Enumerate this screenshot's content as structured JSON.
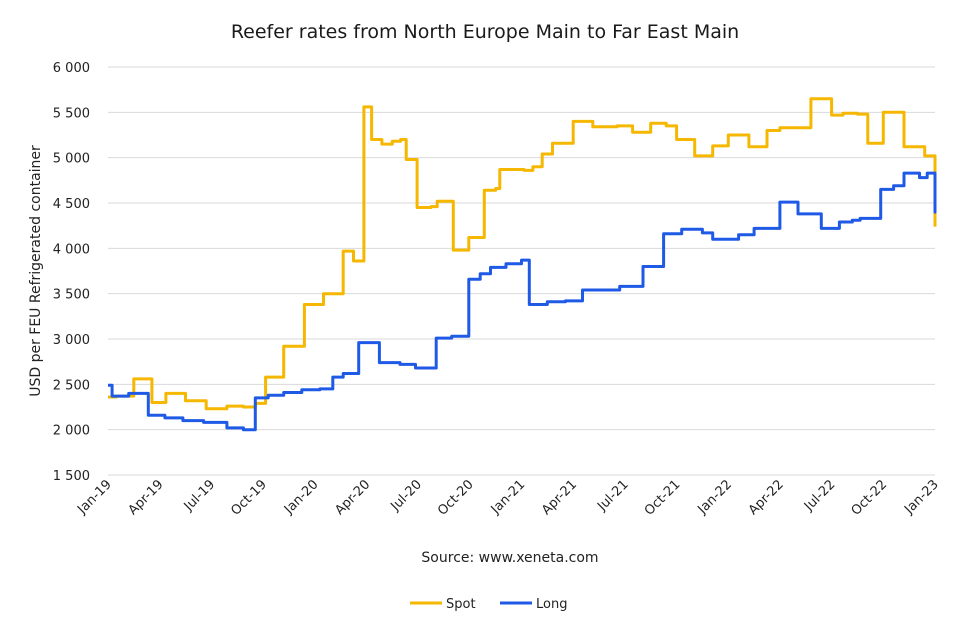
{
  "chart_data": {
    "type": "line",
    "title": "Reefer rates from North Europe Main to Far East Main",
    "ylabel": "USD per FEU Refrigerated container",
    "source": "Source: www.xeneta.com",
    "ylim": [
      1500,
      6000
    ],
    "yticks": [
      1500,
      2000,
      2500,
      3000,
      3500,
      4000,
      4500,
      5000,
      5500,
      6000
    ],
    "ytick_labels": [
      "1 500",
      "2 000",
      "2 500",
      "3 000",
      "3 500",
      "4 000",
      "4 500",
      "5 000",
      "5 500",
      "6 000"
    ],
    "xticks": [
      "Jan-19",
      "Apr-19",
      "Jul-19",
      "Oct-19",
      "Jan-20",
      "Apr-20",
      "Jul-20",
      "Oct-20",
      "Jan-21",
      "Apr-21",
      "Jul-21",
      "Oct-21",
      "Jan-22",
      "Apr-22",
      "Jul-22",
      "Oct-22",
      "Jan-23"
    ],
    "x_unit": "quarter-index (0 = Jan-19, 16 = Jan-23)",
    "grid": true,
    "legend_position": "bottom",
    "colors": {
      "Spot": "#f5b700",
      "Long": "#1f5ae6"
    },
    "series": [
      {
        "name": "Spot",
        "step": true,
        "points": [
          [
            0,
            2360
          ],
          [
            0.16,
            2370
          ],
          [
            0.5,
            2560
          ],
          [
            0.85,
            2300
          ],
          [
            1.12,
            2400
          ],
          [
            1.5,
            2320
          ],
          [
            1.9,
            2230
          ],
          [
            2.3,
            2260
          ],
          [
            2.62,
            2250
          ],
          [
            2.85,
            2290
          ],
          [
            3.05,
            2580
          ],
          [
            3.4,
            2920
          ],
          [
            3.8,
            3380
          ],
          [
            4.17,
            3500
          ],
          [
            4.55,
            3970
          ],
          [
            4.75,
            3860
          ],
          [
            4.95,
            5560
          ],
          [
            5.1,
            5200
          ],
          [
            5.3,
            5150
          ],
          [
            5.5,
            5180
          ],
          [
            5.66,
            5200
          ],
          [
            5.77,
            4980
          ],
          [
            5.98,
            4450
          ],
          [
            6.25,
            4460
          ],
          [
            6.37,
            4520
          ],
          [
            6.68,
            3980
          ],
          [
            6.98,
            4120
          ],
          [
            7.28,
            4640
          ],
          [
            7.5,
            4660
          ],
          [
            7.58,
            4870
          ],
          [
            8.05,
            4860
          ],
          [
            8.22,
            4900
          ],
          [
            8.4,
            5040
          ],
          [
            8.6,
            5160
          ],
          [
            9.0,
            5400
          ],
          [
            9.38,
            5340
          ],
          [
            9.85,
            5350
          ],
          [
            10.15,
            5280
          ],
          [
            10.5,
            5380
          ],
          [
            10.8,
            5350
          ],
          [
            11.0,
            5200
          ],
          [
            11.35,
            5020
          ],
          [
            11.7,
            5130
          ],
          [
            12.0,
            5250
          ],
          [
            12.4,
            5120
          ],
          [
            12.75,
            5300
          ],
          [
            13.0,
            5330
          ],
          [
            13.6,
            5650
          ],
          [
            14.0,
            5470
          ],
          [
            14.22,
            5490
          ],
          [
            14.5,
            5480
          ],
          [
            14.7,
            5160
          ],
          [
            15.0,
            5500
          ],
          [
            15.4,
            5120
          ],
          [
            15.8,
            5020
          ],
          [
            16.0,
            4550
          ],
          [
            16.35,
            4240
          ],
          [
            16.6,
            4240
          ]
        ]
      },
      {
        "name": "Long",
        "step": true,
        "points": [
          [
            0,
            2490
          ],
          [
            0.08,
            2370
          ],
          [
            0.4,
            2400
          ],
          [
            0.78,
            2160
          ],
          [
            1.1,
            2130
          ],
          [
            1.45,
            2100
          ],
          [
            1.85,
            2080
          ],
          [
            2.3,
            2020
          ],
          [
            2.62,
            2000
          ],
          [
            2.85,
            2350
          ],
          [
            3.1,
            2380
          ],
          [
            3.4,
            2410
          ],
          [
            3.75,
            2440
          ],
          [
            4.1,
            2450
          ],
          [
            4.35,
            2580
          ],
          [
            4.55,
            2620
          ],
          [
            4.85,
            2960
          ],
          [
            5.25,
            2740
          ],
          [
            5.65,
            2720
          ],
          [
            5.95,
            2680
          ],
          [
            6.35,
            3010
          ],
          [
            6.65,
            3030
          ],
          [
            6.98,
            3660
          ],
          [
            7.2,
            3720
          ],
          [
            7.4,
            3790
          ],
          [
            7.7,
            3830
          ],
          [
            8.0,
            3870
          ],
          [
            8.15,
            3380
          ],
          [
            8.5,
            3410
          ],
          [
            8.85,
            3420
          ],
          [
            9.18,
            3540
          ],
          [
            9.5,
            3540
          ],
          [
            9.9,
            3580
          ],
          [
            10.35,
            3800
          ],
          [
            10.75,
            4160
          ],
          [
            11.1,
            4210
          ],
          [
            11.5,
            4170
          ],
          [
            11.7,
            4100
          ],
          [
            12.2,
            4150
          ],
          [
            12.5,
            4220
          ],
          [
            13.0,
            4510
          ],
          [
            13.35,
            4380
          ],
          [
            13.8,
            4220
          ],
          [
            14.15,
            4290
          ],
          [
            14.4,
            4310
          ],
          [
            14.55,
            4330
          ],
          [
            14.95,
            4650
          ],
          [
            15.2,
            4690
          ],
          [
            15.4,
            4830
          ],
          [
            15.7,
            4780
          ],
          [
            15.85,
            4830
          ],
          [
            16.15,
            4420
          ],
          [
            16.5,
            4420
          ],
          [
            16.7,
            4430
          ],
          [
            17.0,
            4590
          ],
          [
            17.3,
            4600
          ],
          [
            17.4,
            4400
          ],
          [
            17.55,
            4450
          ],
          [
            17.7,
            4490
          ]
        ]
      }
    ]
  }
}
